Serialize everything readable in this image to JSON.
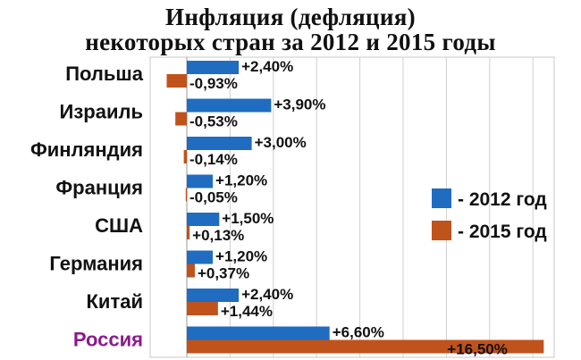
{
  "chart_data": {
    "type": "bar",
    "orientation": "horizontal",
    "title_lines": [
      "Инфляция (дефляция)",
      "некоторых стран за 2012 и 2015 годы"
    ],
    "categories": [
      "Польша",
      "Израиль",
      "Финляндия",
      "Франция",
      "США",
      "Германия",
      "Китай",
      "Россия"
    ],
    "highlight_category": "Россия",
    "highlight_color": "#8a1a8a",
    "series": [
      {
        "name": "- 2012 год",
        "color": "#1f6cc0",
        "values": [
          2.4,
          3.9,
          3.0,
          1.2,
          1.5,
          1.2,
          2.4,
          6.6
        ],
        "labels": [
          "+2,40%",
          "+3,90%",
          "+3,00%",
          "+1,20%",
          "+1,50%",
          "+1,20%",
          "+2,40%",
          "+6,60%"
        ]
      },
      {
        "name": "- 2015 год",
        "color": "#c0521c",
        "values": [
          -0.93,
          -0.53,
          -0.14,
          -0.05,
          0.13,
          0.37,
          1.44,
          16.5
        ],
        "labels": [
          "-0,93%",
          "-0,53%",
          "-0,14%",
          "-0,05%",
          "+0,13%",
          "+0,37%",
          "+1,44%",
          "+16,50%"
        ]
      }
    ],
    "xlim": [
      -1.2,
      18
    ],
    "grid": true,
    "legend_position": "right"
  }
}
